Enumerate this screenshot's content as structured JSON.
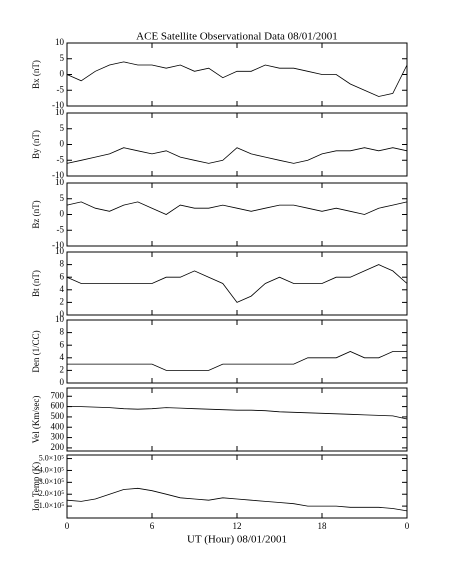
{
  "chart_data": [
    {
      "type": "line",
      "title": "ACE Satellite Observational Data   08/01/2001",
      "ylabel": "Bx (nT)",
      "color": "#000000",
      "x": [
        0,
        1,
        2,
        3,
        4,
        5,
        6,
        7,
        8,
        9,
        10,
        11,
        12,
        13,
        14,
        15,
        16,
        17,
        18,
        19,
        20,
        21,
        22,
        23,
        24
      ],
      "values": [
        0,
        -2,
        1,
        3,
        4,
        3,
        3,
        2,
        3,
        1,
        2,
        -1,
        1,
        1,
        3,
        2,
        2,
        1,
        0,
        0,
        -3,
        -5,
        -7,
        -6,
        3
      ],
      "xlim": [
        0,
        24
      ],
      "xticks": [
        0,
        6,
        12,
        18,
        {
          "value": 24,
          "label": "0"
        }
      ],
      "ylim": [
        -10,
        10
      ],
      "yticks": [
        10,
        5,
        0,
        -5,
        -10
      ]
    },
    {
      "type": "line",
      "ylabel": "By (nT)",
      "color": "#000000",
      "x": [
        0,
        1,
        2,
        3,
        4,
        5,
        6,
        7,
        8,
        9,
        10,
        11,
        12,
        13,
        14,
        15,
        16,
        17,
        18,
        19,
        20,
        21,
        22,
        23,
        24
      ],
      "values": [
        -6,
        -5,
        -4,
        -3,
        -1,
        -2,
        -3,
        -2,
        -4,
        -5,
        -6,
        -5,
        -1,
        -3,
        -4,
        -5,
        -6,
        -5,
        -3,
        -2,
        -2,
        -1,
        -2,
        -1,
        -2
      ],
      "xlim": [
        0,
        24
      ],
      "xticks": [
        0,
        6,
        12,
        18,
        {
          "value": 24,
          "label": "0"
        }
      ],
      "ylim": [
        -10,
        10
      ],
      "yticks": [
        10,
        5,
        0,
        -5,
        -10
      ]
    },
    {
      "type": "line",
      "ylabel": "Bz (nT)",
      "color": "#000000",
      "x": [
        0,
        1,
        2,
        3,
        4,
        5,
        6,
        7,
        8,
        9,
        10,
        11,
        12,
        13,
        14,
        15,
        16,
        17,
        18,
        19,
        20,
        21,
        22,
        23,
        24
      ],
      "values": [
        3,
        4,
        2,
        1,
        3,
        4,
        2,
        0,
        3,
        2,
        2,
        3,
        2,
        1,
        2,
        3,
        3,
        2,
        1,
        2,
        1,
        0,
        2,
        3,
        4
      ],
      "xlim": [
        0,
        24
      ],
      "xticks": [
        0,
        6,
        12,
        18,
        {
          "value": 24,
          "label": "0"
        }
      ],
      "ylim": [
        -10,
        10
      ],
      "yticks": [
        10,
        5,
        0,
        -5,
        -10
      ]
    },
    {
      "type": "line",
      "ylabel": "Bt (nT)",
      "color": "#000000",
      "x": [
        0,
        1,
        2,
        3,
        4,
        5,
        6,
        7,
        8,
        9,
        10,
        11,
        12,
        13,
        14,
        15,
        16,
        17,
        18,
        19,
        20,
        21,
        22,
        23,
        24
      ],
      "values": [
        6,
        5,
        5,
        5,
        5,
        5,
        5,
        6,
        6,
        7,
        6,
        5,
        2,
        3,
        5,
        6,
        5,
        5,
        5,
        6,
        6,
        7,
        8,
        7,
        5
      ],
      "xlim": [
        0,
        24
      ],
      "xticks": [
        0,
        6,
        12,
        18,
        {
          "value": 24,
          "label": "0"
        }
      ],
      "ylim": [
        0,
        10
      ],
      "yticks": [
        10,
        8,
        6,
        4,
        2,
        0
      ]
    },
    {
      "type": "line",
      "ylabel": "Den (1/CC)",
      "color": "#000000",
      "x": [
        0,
        1,
        2,
        3,
        4,
        5,
        6,
        7,
        8,
        9,
        10,
        11,
        12,
        13,
        14,
        15,
        16,
        17,
        18,
        19,
        20,
        21,
        22,
        23,
        24
      ],
      "values": [
        3,
        3,
        3,
        3,
        3,
        3,
        3,
        2,
        2,
        2,
        2,
        3,
        3,
        3,
        3,
        3,
        3,
        4,
        4,
        4,
        5,
        4,
        4,
        5,
        5
      ],
      "xlim": [
        0,
        24
      ],
      "xticks": [
        0,
        6,
        12,
        18,
        {
          "value": 24,
          "label": "0"
        }
      ],
      "ylim": [
        0,
        10
      ],
      "yticks": [
        10,
        8,
        6,
        4,
        2,
        0
      ]
    },
    {
      "type": "line",
      "ylabel": "Vel (Km/sec)",
      "color": "#000000",
      "x": [
        0,
        1,
        2,
        3,
        4,
        5,
        6,
        7,
        8,
        9,
        10,
        11,
        12,
        13,
        14,
        15,
        16,
        17,
        18,
        19,
        20,
        21,
        22,
        23,
        24
      ],
      "values": [
        600,
        600,
        595,
        590,
        580,
        575,
        580,
        590,
        585,
        580,
        575,
        570,
        565,
        565,
        560,
        550,
        545,
        540,
        535,
        530,
        525,
        520,
        515,
        510,
        480
      ],
      "xlim": [
        0,
        24
      ],
      "xticks": [
        0,
        6,
        12,
        18,
        {
          "value": 24,
          "label": "0"
        }
      ],
      "ylim": [
        170,
        780
      ],
      "yticks": [
        700,
        600,
        500,
        400,
        300,
        200
      ]
    },
    {
      "type": "line",
      "ylabel": "Ion Temp (K)",
      "xlabel": "UT (Hour)   08/01/2001",
      "color": "#000000",
      "x": [
        0,
        1,
        2,
        3,
        4,
        5,
        6,
        7,
        8,
        9,
        10,
        11,
        12,
        13,
        14,
        15,
        16,
        17,
        18,
        19,
        20,
        21,
        22,
        23,
        24
      ],
      "values": [
        150000,
        140000,
        160000,
        200000,
        240000,
        250000,
        230000,
        200000,
        170000,
        160000,
        150000,
        170000,
        160000,
        150000,
        140000,
        130000,
        120000,
        100000,
        100000,
        100000,
        90000,
        90000,
        90000,
        80000,
        60000
      ],
      "xlim": [
        0,
        24
      ],
      "xticks": [
        0,
        6,
        12,
        18,
        {
          "value": 24,
          "label": "0"
        }
      ],
      "ylim": [
        0,
        530000
      ],
      "yticks": [
        {
          "value": 500000,
          "label": "5.0×10⁵"
        },
        {
          "value": 400000,
          "label": "4.0×10⁵"
        },
        {
          "value": 300000,
          "label": "3.0×10⁵"
        },
        {
          "value": 200000,
          "label": "2.0×10⁵"
        },
        {
          "value": 100000,
          "label": "1.0×10⁵"
        }
      ]
    }
  ]
}
